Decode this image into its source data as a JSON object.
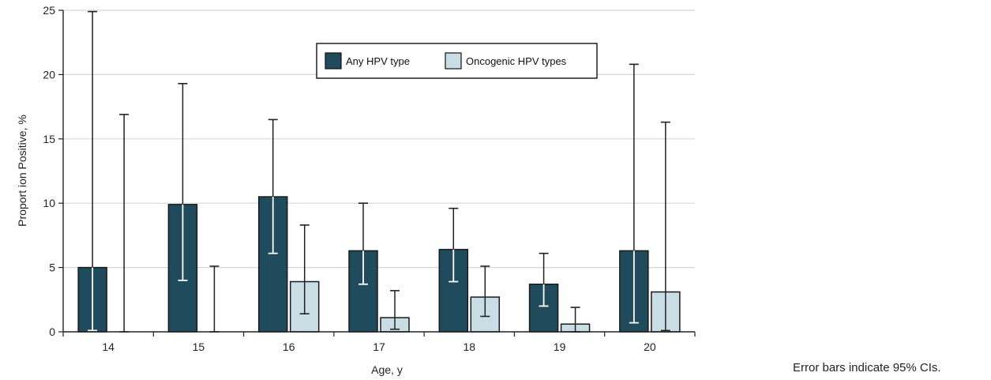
{
  "chart_data": {
    "type": "bar",
    "xlabel": "Age, y",
    "ylabel": "Proport ion Positive, %",
    "ylim": [
      0,
      25
    ],
    "yticks": [
      0,
      5,
      10,
      15,
      20,
      25
    ],
    "categories": [
      "14",
      "15",
      "16",
      "17",
      "18",
      "19",
      "20"
    ],
    "grid": "horizontal",
    "legend_position": "top-center",
    "series": [
      {
        "name": "Any HPV type",
        "color": "#1f4b5c",
        "values": [
          5.0,
          9.9,
          10.5,
          6.3,
          6.4,
          3.7,
          6.3
        ],
        "ci_low": [
          0.1,
          4.0,
          6.1,
          3.7,
          3.9,
          2.0,
          0.7
        ],
        "ci_high": [
          24.9,
          19.3,
          16.5,
          10.0,
          9.6,
          6.1,
          20.8
        ]
      },
      {
        "name": "Oncogenic HPV types",
        "color": "#c8dde4",
        "values": [
          0,
          0,
          3.9,
          1.1,
          2.7,
          0.6,
          3.1
        ],
        "ci_low": [
          0,
          0,
          1.4,
          0.2,
          1.2,
          0.0,
          0.1
        ],
        "ci_high": [
          16.9,
          5.1,
          8.3,
          3.2,
          5.1,
          1.9,
          16.3
        ]
      }
    ]
  },
  "note": "Error bars indicate 95% CIs."
}
